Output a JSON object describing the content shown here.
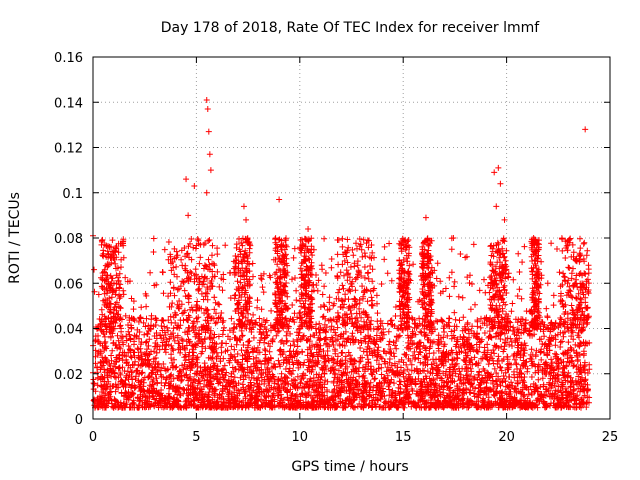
{
  "chart_data": {
    "type": "scatter",
    "title": "Day 178 of 2018, Rate Of TEC Index for receiver lmmf",
    "xlabel": "GPS time / hours",
    "ylabel": "ROTI / TECUs",
    "xlim": [
      0,
      25
    ],
    "ylim": [
      0,
      0.16
    ],
    "x_ticks": [
      0,
      5,
      10,
      15,
      20,
      25
    ],
    "x_tick_labels": [
      "0",
      "5",
      "10",
      "15",
      "20",
      "25"
    ],
    "y_ticks": [
      0,
      0.02,
      0.04,
      0.06,
      0.08,
      0.1,
      0.12,
      0.14,
      0.16
    ],
    "y_tick_labels": [
      "0",
      "0.02",
      "0.04",
      "0.06",
      "0.08",
      "0.1",
      "0.12",
      "0.14",
      "0.16"
    ],
    "grid": true,
    "marker": "+",
    "color": "#ff0000",
    "series": [
      {
        "name": "ROTI",
        "x_range_hours": [
          0,
          24
        ],
        "typical_range": [
          0.005,
          0.045
        ],
        "peaks": [
          {
            "x": 0.0,
            "y": 0.081
          },
          {
            "x": 0.05,
            "y": 0.066
          },
          {
            "x": 4.5,
            "y": 0.106
          },
          {
            "x": 4.6,
            "y": 0.09
          },
          {
            "x": 4.9,
            "y": 0.103
          },
          {
            "x": 5.5,
            "y": 0.141
          },
          {
            "x": 5.55,
            "y": 0.137
          },
          {
            "x": 5.6,
            "y": 0.127
          },
          {
            "x": 5.65,
            "y": 0.117
          },
          {
            "x": 5.7,
            "y": 0.11
          },
          {
            "x": 5.5,
            "y": 0.1
          },
          {
            "x": 7.3,
            "y": 0.094
          },
          {
            "x": 7.4,
            "y": 0.088
          },
          {
            "x": 9.0,
            "y": 0.097
          },
          {
            "x": 10.4,
            "y": 0.084
          },
          {
            "x": 16.1,
            "y": 0.089
          },
          {
            "x": 19.4,
            "y": 0.109
          },
          {
            "x": 19.6,
            "y": 0.111
          },
          {
            "x": 19.7,
            "y": 0.104
          },
          {
            "x": 19.5,
            "y": 0.094
          },
          {
            "x": 19.9,
            "y": 0.088
          },
          {
            "x": 23.8,
            "y": 0.128
          }
        ]
      }
    ]
  }
}
